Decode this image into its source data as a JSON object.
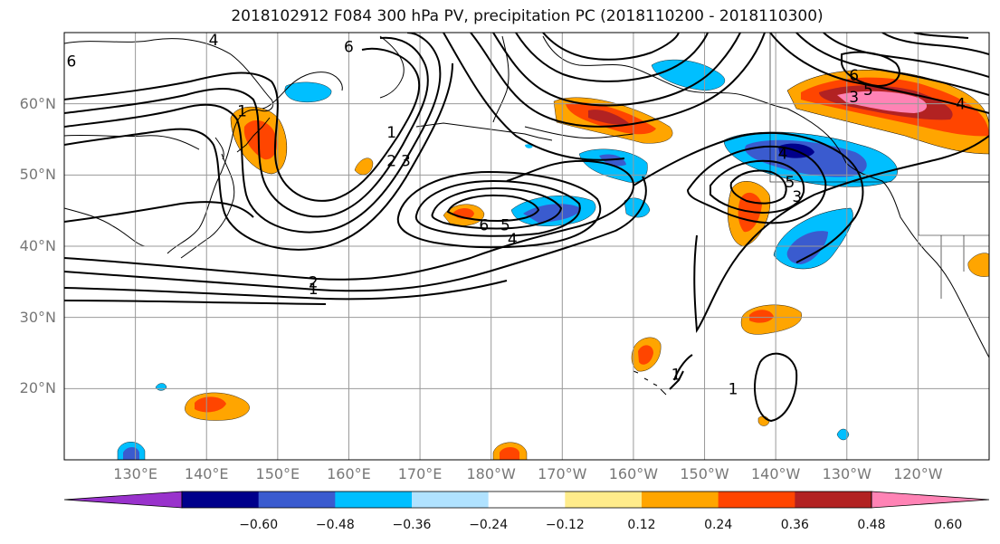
{
  "title": "2018102912 F084 300 hPa PV, precipitation PC (2018110200 - 2018110300)",
  "map": {
    "lon_range": [
      120,
      250
    ],
    "lat_range": [
      10,
      70
    ],
    "lat_ticks": [
      {
        "value": 60,
        "label": "60°N"
      },
      {
        "value": 50,
        "label": "50°N"
      },
      {
        "value": 40,
        "label": "40°N"
      },
      {
        "value": 30,
        "label": "30°N"
      },
      {
        "value": 20,
        "label": "20°N"
      }
    ],
    "lon_ticks": [
      {
        "value": 130,
        "label": "130°E"
      },
      {
        "value": 140,
        "label": "140°E"
      },
      {
        "value": 150,
        "label": "150°E"
      },
      {
        "value": 160,
        "label": "160°E"
      },
      {
        "value": 170,
        "label": "170°E"
      },
      {
        "value": 180,
        "label": "180°W"
      },
      {
        "value": 190,
        "label": "170°W"
      },
      {
        "value": 200,
        "label": "160°W"
      },
      {
        "value": 210,
        "label": "150°W"
      },
      {
        "value": 220,
        "label": "140°W"
      },
      {
        "value": 230,
        "label": "130°W"
      },
      {
        "value": 240,
        "label": "120°W"
      }
    ],
    "contour_labels": [
      {
        "lon": 141,
        "lat": 69,
        "text": "4"
      },
      {
        "lon": 160,
        "lat": 68,
        "text": "6"
      },
      {
        "lon": 121,
        "lat": 66,
        "text": "6"
      },
      {
        "lon": 145,
        "lat": 59,
        "text": "1"
      },
      {
        "lon": 166,
        "lat": 56,
        "text": "1"
      },
      {
        "lon": 166,
        "lat": 52,
        "text": "2"
      },
      {
        "lon": 168,
        "lat": 52,
        "text": "3"
      },
      {
        "lon": 179,
        "lat": 43,
        "text": "6"
      },
      {
        "lon": 182,
        "lat": 43,
        "text": "5"
      },
      {
        "lon": 183,
        "lat": 41,
        "text": "4"
      },
      {
        "lon": 155,
        "lat": 35,
        "text": "2"
      },
      {
        "lon": 155,
        "lat": 34,
        "text": "1"
      },
      {
        "lon": 221,
        "lat": 53,
        "text": "4"
      },
      {
        "lon": 222,
        "lat": 49,
        "text": "5"
      },
      {
        "lon": 223,
        "lat": 47,
        "text": "3"
      },
      {
        "lon": 231,
        "lat": 64,
        "text": "6"
      },
      {
        "lon": 233,
        "lat": 62,
        "text": "5"
      },
      {
        "lon": 231,
        "lat": 61,
        "text": "3"
      },
      {
        "lon": 246,
        "lat": 60,
        "text": "4"
      },
      {
        "lon": 206,
        "lat": 22,
        "text": "1"
      },
      {
        "lon": 214,
        "lat": 20,
        "text": "1"
      }
    ]
  },
  "colorbar": {
    "ticks": [
      "−0.60",
      "−0.48",
      "−0.36",
      "−0.24",
      "−0.12",
      "0.12",
      "0.24",
      "0.36",
      "0.48",
      "0.60"
    ],
    "colors": [
      "#9932cc",
      "#00008b",
      "#3a5bcf",
      "#00bfff",
      "#b0e2ff",
      "#ffffff",
      "#ffec8b",
      "#ffa500",
      "#ff4500",
      "#b22222",
      "#ff83b5"
    ]
  },
  "chart_data": {
    "type": "heatmap",
    "title": "2018102912 F084 300 hPa PV, precipitation PC (2018110200 - 2018110300)",
    "xlabel": "",
    "ylabel": "",
    "xlim": [
      120,
      250
    ],
    "ylim": [
      10,
      70
    ],
    "color_levels": [
      -0.6,
      -0.48,
      -0.36,
      -0.24,
      -0.12,
      0.12,
      0.24,
      0.36,
      0.48,
      0.6
    ],
    "precip_pc_features": [
      {
        "lon": 148,
        "lat": 55,
        "value": 0.4
      },
      {
        "lon": 161,
        "lat": 49,
        "value": 0.3
      },
      {
        "lon": 176,
        "lat": 44,
        "value": 0.4
      },
      {
        "lon": 186,
        "lat": 44,
        "value": -0.45
      },
      {
        "lon": 196,
        "lat": 58,
        "value": 0.5
      },
      {
        "lon": 204,
        "lat": 48,
        "value": -0.3
      },
      {
        "lon": 218,
        "lat": 44,
        "value": 0.4
      },
      {
        "lon": 225,
        "lat": 52,
        "value": -0.5
      },
      {
        "lon": 228,
        "lat": 40,
        "value": -0.45
      },
      {
        "lon": 234,
        "lat": 59,
        "value": 0.62
      },
      {
        "lon": 248,
        "lat": 57,
        "value": 0.4
      },
      {
        "lon": 140,
        "lat": 17,
        "value": 0.3
      },
      {
        "lon": 199,
        "lat": 24,
        "value": 0.36
      },
      {
        "lon": 218,
        "lat": 31,
        "value": 0.3
      },
      {
        "lon": 180,
        "lat": 11,
        "value": 0.3
      },
      {
        "lon": 129,
        "lat": 11,
        "value": -0.4
      },
      {
        "lon": 158,
        "lat": 61,
        "value": -0.24
      },
      {
        "lon": 212,
        "lat": 64,
        "value": -0.3
      }
    ]
  }
}
